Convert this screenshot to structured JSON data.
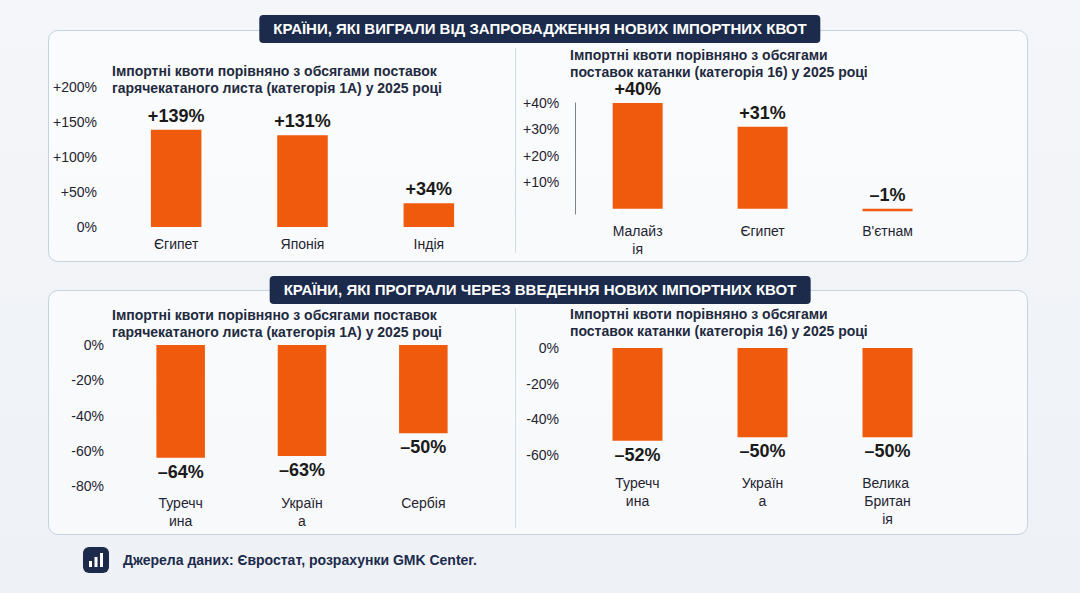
{
  "panels": [
    {
      "title": "КРАЇНИ, ЯКІ ВИГРАЛИ ВІД ЗАПРОВАДЖЕННЯ НОВИХ ІМПОРТНИХ КВОТ"
    },
    {
      "title": "КРАЇНИ, ЯКІ ПРОГРАЛИ ЧЕРЕЗ ВВЕДЕННЯ НОВИХ ІМПОРТНИХ КВОТ"
    }
  ],
  "source": "Джерела даних: Євростат, розрахунки GMK Center.",
  "chart_data": [
    {
      "type": "bar",
      "title": "Імпортні квоти порівняно з обсягами поставок гарячекатаного листа (категорія 1А) у 2025 році",
      "categories": [
        "Єгипет",
        "Японія",
        "Індія"
      ],
      "values": [
        139,
        131,
        34
      ],
      "value_labels": [
        "+139%",
        "+131%",
        "+34%"
      ],
      "color": "#f05a0c",
      "ylim": [
        0,
        200
      ],
      "yticks": [
        {
          "value": 0,
          "label": "0%"
        },
        {
          "value": 50,
          "label": "+50%"
        },
        {
          "value": 100,
          "label": "+100%"
        },
        {
          "value": 150,
          "label": "+150%"
        },
        {
          "value": 200,
          "label": "+200%"
        }
      ],
      "data_labels": true,
      "grid": false
    },
    {
      "type": "bar",
      "title": "Імпортні квоти порівняно з обсягами поставок катанки (категорія 16) у 2025 році",
      "categories": [
        "Малайзія",
        "Єгипет",
        "В'єтнам"
      ],
      "values": [
        40,
        31,
        -1
      ],
      "value_labels": [
        "+40%",
        "+31%",
        "–1%"
      ],
      "color": "#f05a0c",
      "ylim": [
        -2,
        40
      ],
      "yticks": [
        {
          "value": 10,
          "label": "+10%"
        },
        {
          "value": 20,
          "label": "+20%"
        },
        {
          "value": 30,
          "label": "+30%"
        },
        {
          "value": 40,
          "label": "+40%"
        }
      ],
      "data_labels": true,
      "grid": false
    },
    {
      "type": "bar",
      "title": "Імпортні квоти порівняно з обсягами поставок гарячекатаного листа (категорія 1А) у 2025 році",
      "categories": [
        "Туреччина",
        "Україна",
        "Сербія"
      ],
      "values": [
        -64,
        -63,
        -50
      ],
      "value_labels": [
        "–64%",
        "–63%",
        "–50%"
      ],
      "color": "#f05a0c",
      "ylim": [
        -80,
        0
      ],
      "yticks": [
        {
          "value": -80,
          "label": "-80%"
        },
        {
          "value": -60,
          "label": "-60%"
        },
        {
          "value": -40,
          "label": "-40%"
        },
        {
          "value": -20,
          "label": "-20%"
        },
        {
          "value": 0,
          "label": "0%"
        }
      ],
      "data_labels": true,
      "grid": false
    },
    {
      "type": "bar",
      "title": "Імпортні квоти порівняно з обсягами поставок катанки (категорія 16) у 2025 році",
      "categories": [
        "Туреччина",
        "Україна",
        "Велика Британія"
      ],
      "values": [
        -52,
        -50,
        -50
      ],
      "value_labels": [
        "–52%",
        "–50%",
        "–50%"
      ],
      "color": "#f05a0c",
      "ylim": [
        -60,
        0
      ],
      "yticks": [
        {
          "value": -60,
          "label": "-60%"
        },
        {
          "value": -40,
          "label": "-40%"
        },
        {
          "value": -20,
          "label": "-20%"
        },
        {
          "value": 0,
          "label": "0%"
        }
      ],
      "data_labels": true,
      "grid": false
    }
  ]
}
